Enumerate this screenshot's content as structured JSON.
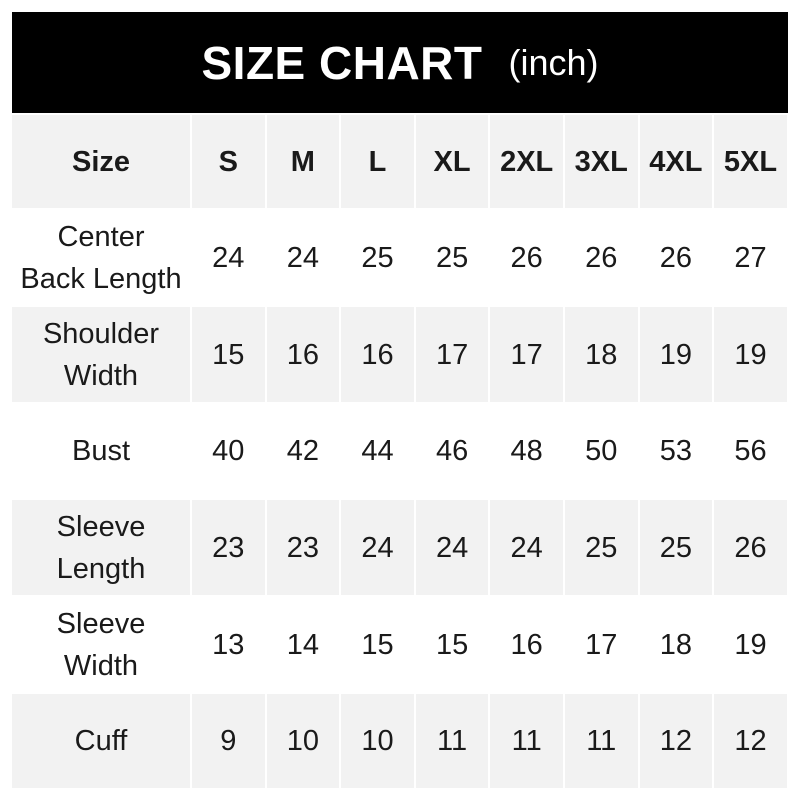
{
  "title": {
    "main": "SIZE CHART",
    "unit": "(inch)"
  },
  "colors": {
    "header_bg": "#000000",
    "header_text": "#ffffff",
    "stripe": "#f2f2f2"
  },
  "table": {
    "header": [
      "Size",
      "S",
      "M",
      "L",
      "XL",
      "2XL",
      "3XL",
      "4XL",
      "5XL"
    ],
    "rows": [
      {
        "label": [
          "Center",
          "Back Length"
        ],
        "values": [
          "24",
          "24",
          "25",
          "25",
          "26",
          "26",
          "26",
          "27"
        ]
      },
      {
        "label": [
          "Shoulder",
          "Width"
        ],
        "values": [
          "15",
          "16",
          "16",
          "17",
          "17",
          "18",
          "19",
          "19"
        ]
      },
      {
        "label": [
          "Bust"
        ],
        "values": [
          "40",
          "42",
          "44",
          "46",
          "48",
          "50",
          "53",
          "56"
        ]
      },
      {
        "label": [
          "Sleeve",
          "Length"
        ],
        "values": [
          "23",
          "23",
          "24",
          "24",
          "24",
          "25",
          "25",
          "26"
        ]
      },
      {
        "label": [
          "Sleeve",
          "Width"
        ],
        "values": [
          "13",
          "14",
          "15",
          "15",
          "16",
          "17",
          "18",
          "19"
        ]
      },
      {
        "label": [
          "Cuff"
        ],
        "values": [
          "9",
          "10",
          "10",
          "11",
          "11",
          "11",
          "12",
          "12"
        ]
      }
    ]
  }
}
